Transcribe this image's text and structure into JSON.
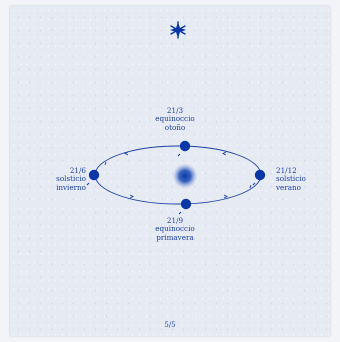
{
  "colors": {
    "ink": "#1a3fa4",
    "planet": "#0a37a8",
    "paper": "#e6ebf3"
  },
  "icons": {
    "top": "star-icon",
    "center": "sun-icon"
  },
  "labels": {
    "top": {
      "date": "21/3",
      "line1": "equinoccio",
      "line2": "otoño"
    },
    "bottom": {
      "date": "21/9",
      "line1": "equinoccio",
      "line2": "primavera"
    },
    "left": {
      "date": "21/6",
      "line1": "solsticio",
      "line2": "invierno"
    },
    "right": {
      "date": "21/12",
      "line1": "solsticio",
      "line2": "verano"
    }
  },
  "page_number": "5/5"
}
